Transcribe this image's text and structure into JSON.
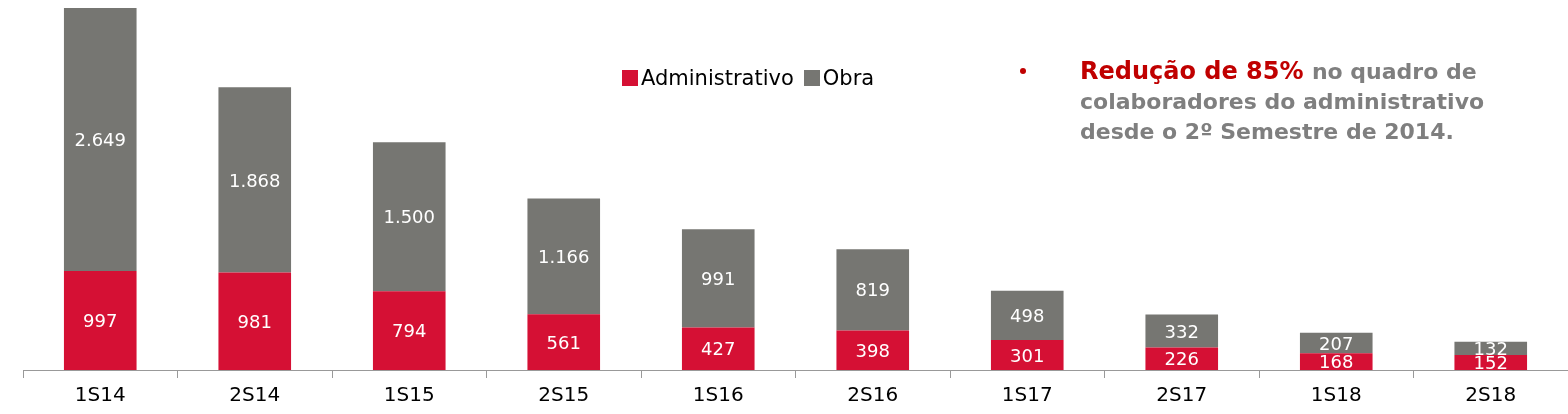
{
  "chart_data": {
    "type": "bar",
    "stacked": true,
    "relative": false,
    "categories": [
      "1S14",
      "2S14",
      "1S15",
      "2S15",
      "1S16",
      "2S16",
      "1S17",
      "2S17",
      "1S18",
      "2S18"
    ],
    "series": [
      {
        "name": "Administrativo",
        "color": "#d51034",
        "values": [
          997,
          981,
          794,
          561,
          427,
          398,
          301,
          226,
          168,
          152
        ],
        "value_labels": [
          "997",
          "981",
          "794",
          "561",
          "427",
          "398",
          "301",
          "226",
          "168",
          "152"
        ]
      },
      {
        "name": "Obra",
        "color": "#767672",
        "values": [
          2649,
          1868,
          1500,
          1166,
          991,
          819,
          498,
          332,
          207,
          132
        ],
        "value_labels": [
          "2.649",
          "1.868",
          "1.500",
          "1.166",
          "991",
          "819",
          "498",
          "332",
          "207",
          "132"
        ]
      }
    ],
    "legend": "top",
    "annotations": [
      "Redução de 85%",
      "no quadro de colaboradores do administrativo desde o 2º Semestre de 2014."
    ]
  }
}
